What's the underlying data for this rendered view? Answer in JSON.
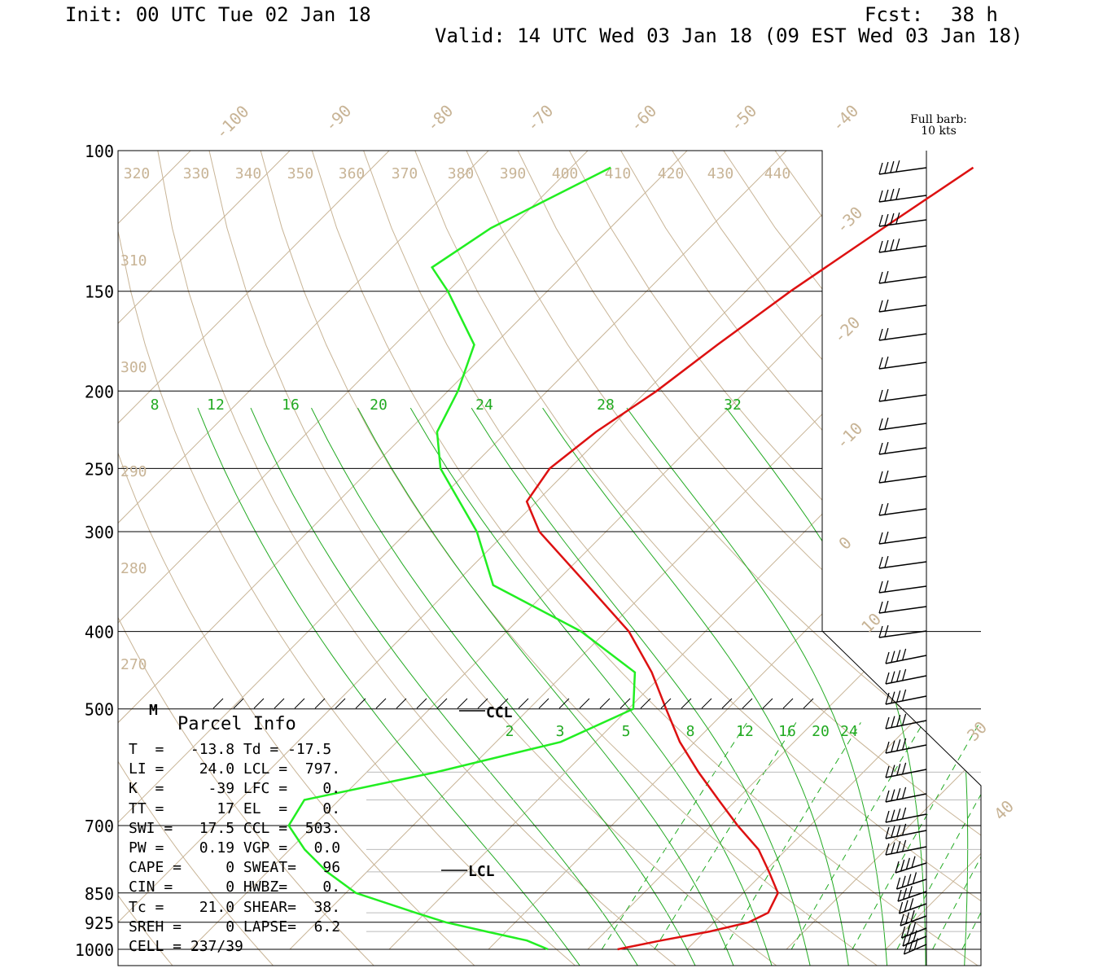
{
  "header": {
    "init": "Init: 00 UTC Tue 02 Jan 18",
    "fcst_label": "Fcst:",
    "fcst_value": "38 h",
    "valid": "Valid: 14 UTC Wed 03 Jan 18 (09 EST Wed 03 Jan 18)"
  },
  "barb_note": {
    "line1": "Full barb:",
    "line2": "10 kts"
  },
  "colors": {
    "temperature": "#dd1111",
    "dewpoint": "#22ee22",
    "isotherm": "#c8b496",
    "mixing_ratio": "#22aa22",
    "grid": "#000000"
  },
  "chart_data": {
    "type": "line",
    "title": "",
    "xlabel": "",
    "ylabel": "",
    "pressure_axis": {
      "levels": [
        100,
        150,
        200,
        250,
        300,
        400,
        500,
        700,
        850,
        925,
        1000
      ],
      "labels": [
        "100",
        "150",
        "200",
        "250",
        "300",
        "400",
        "500",
        "700",
        "850",
        "925",
        "1000"
      ],
      "ylim": [
        1000,
        100
      ],
      "scale": "log"
    },
    "isotherm_labels": [
      "-100",
      "-90",
      "-80",
      "-70",
      "-60",
      "-50",
      "-40",
      "-30",
      "-20",
      "-10",
      "0",
      "10",
      "30",
      "40"
    ],
    "theta_labels_top": [
      "320",
      "330",
      "340",
      "350",
      "360",
      "370",
      "380",
      "390",
      "400",
      "410",
      "420",
      "430",
      "440"
    ],
    "theta_labels_left": [
      "310",
      "300",
      "290",
      "280",
      "270"
    ],
    "mixing_ratio_labels_upper": [
      "8",
      "12",
      "16",
      "20",
      "24",
      "28",
      "32"
    ],
    "mixing_ratio_labels_lower": [
      "2",
      "3",
      "5",
      "8",
      "12",
      "16",
      "20",
      "24"
    ],
    "series": [
      {
        "name": "",
        "color": "#dd1111",
        "pressure": [
          1000,
          975,
          950,
          925,
          900,
          850,
          800,
          750,
          700,
          650,
          600,
          550,
          500,
          450,
          400,
          350,
          300,
          275,
          250,
          225,
          200,
          175,
          150,
          125,
          105
        ],
        "temperature": [
          -7,
          -3.5,
          0.5,
          3.5,
          4.5,
          3.5,
          0.5,
          -2.8,
          -7.3,
          -11.8,
          -16.6,
          -21.5,
          -26.2,
          -31.3,
          -37.7,
          -46.5,
          -56.7,
          -61,
          -62,
          -61,
          -59,
          -57.5,
          -55.5,
          -52.5,
          -49.5
        ]
      },
      {
        "name": "",
        "color": "#22ee22",
        "pressure": [
          1000,
          975,
          950,
          925,
          900,
          850,
          800,
          750,
          700,
          650,
          600,
          550,
          500,
          450,
          400,
          350,
          300,
          250,
          225,
          200,
          175,
          150,
          140,
          125,
          105
        ],
        "temperature": [
          -14,
          -17,
          -22,
          -27,
          -31,
          -39,
          -44,
          -48.5,
          -52.5,
          -53.5,
          -43,
          -33.5,
          -29.5,
          -33,
          -42.5,
          -56,
          -63,
          -73,
          -77,
          -79,
          -82,
          -90,
          -94,
          -92,
          -86
        ]
      }
    ],
    "wind_barbs_note": "Full barb: 10 kts",
    "markers": [
      "LCL",
      "CCL",
      "M"
    ]
  },
  "parcel_info": {
    "title": "Parcel Info",
    "rows": [
      "T  =   -13.8 Td = -17.5",
      "LI =    24.0 LCL =  797.",
      "K  =     -39 LFC =    0.",
      "TT =      17 EL  =    0.",
      "SWI =   17.5 CCL =  503.",
      "PW =    0.19 VGP =   0.0",
      "CAPE =     0 SWEAT=   96",
      "CIN =      0 HWBZ=    0.",
      "Tc =    21.0 SHEAR=  38.",
      "SREH =     0 LAPSE=  6.2",
      "CELL = 237/39"
    ]
  },
  "labels": {
    "lcl": "LCL",
    "ccl": "CCL",
    "m": "M"
  }
}
